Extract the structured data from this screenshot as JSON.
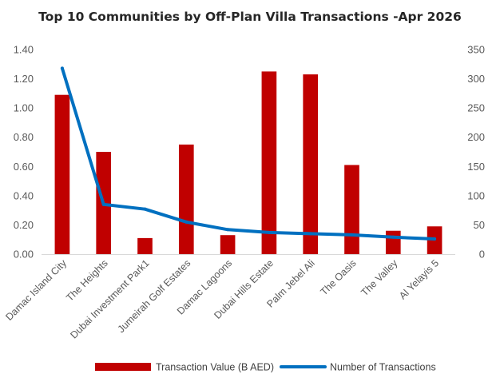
{
  "chart_data": {
    "type": "bar",
    "title": "Top 10 Communities by Off-Plan Villa Transactions -Apr 2026",
    "categories": [
      "Damac Island City",
      "The Heights",
      "Dubai Investment Park1",
      "Jumeirah Golf Estates",
      "Damac Lagoons",
      "Dubai Hills Estate",
      "Palm Jebel Ali",
      "The Oasis",
      "The Valley",
      "Al Yelayis 5"
    ],
    "series": [
      {
        "name": "Transaction Value (B AED)",
        "type": "bar",
        "axis": "left",
        "color": "#C00000",
        "values": [
          1.09,
          0.7,
          0.11,
          0.75,
          0.13,
          1.25,
          1.23,
          0.61,
          0.16,
          0.19
        ]
      },
      {
        "name": "Number of Transactions",
        "type": "line",
        "axis": "right",
        "color": "#0070C0",
        "values": [
          318,
          85,
          77,
          55,
          42,
          37,
          35,
          33,
          29,
          26
        ]
      }
    ],
    "ylim_left": [
      0,
      1.4
    ],
    "yticks_left": [
      "0.00",
      "0.20",
      "0.40",
      "0.60",
      "0.80",
      "1.00",
      "1.20",
      "1.40"
    ],
    "ylim_right": [
      0,
      350
    ],
    "yticks_right": [
      "0",
      "50",
      "100",
      "150",
      "200",
      "250",
      "300",
      "350"
    ],
    "grid": false,
    "legend": "bottom"
  }
}
